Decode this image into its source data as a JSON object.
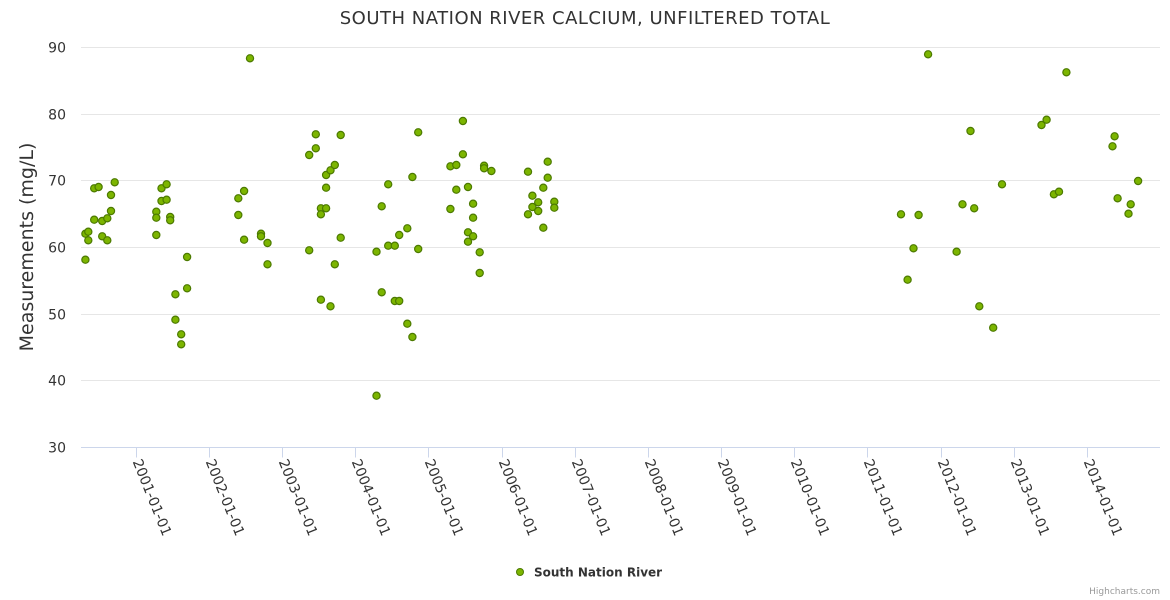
{
  "chart_data": {
    "type": "scatter",
    "title": "SOUTH NATION RIVER CALCIUM, UNFILTERED TOTAL",
    "xlabel": "",
    "ylabel": "Measurements (mg/L)",
    "ylim": [
      30,
      90
    ],
    "yticks": [
      30,
      40,
      50,
      60,
      70,
      80,
      90
    ],
    "xlim": [
      2000.25,
      2015.0
    ],
    "xticks": [
      {
        "value": 2001,
        "label": "2001-01-01"
      },
      {
        "value": 2002,
        "label": "2002-01-01"
      },
      {
        "value": 2003,
        "label": "2003-01-01"
      },
      {
        "value": 2004,
        "label": "2004-01-01"
      },
      {
        "value": 2005,
        "label": "2005-01-01"
      },
      {
        "value": 2006,
        "label": "2006-01-01"
      },
      {
        "value": 2007,
        "label": "2007-01-01"
      },
      {
        "value": 2008,
        "label": "2008-01-01"
      },
      {
        "value": 2009,
        "label": "2009-01-01"
      },
      {
        "value": 2010,
        "label": "2010-01-01"
      },
      {
        "value": 2011,
        "label": "2011-01-01"
      },
      {
        "value": 2012,
        "label": "2012-01-01"
      },
      {
        "value": 2013,
        "label": "2013-01-01"
      },
      {
        "value": 2014,
        "label": "2014-01-01"
      }
    ],
    "grid": true,
    "legend_position": "bottom-center",
    "credits": "Highcharts.com",
    "series": [
      {
        "name": "South Nation River",
        "color": "#7cb500",
        "border_color": "#4c7a00",
        "points": [
          [
            2000.31,
            62.0
          ],
          [
            2000.31,
            58.1
          ],
          [
            2000.35,
            62.3
          ],
          [
            2000.35,
            61.0
          ],
          [
            2000.43,
            64.1
          ],
          [
            2000.43,
            68.8
          ],
          [
            2000.49,
            69.0
          ],
          [
            2000.54,
            63.9
          ],
          [
            2000.54,
            61.6
          ],
          [
            2000.61,
            64.3
          ],
          [
            2000.61,
            61.0
          ],
          [
            2000.66,
            65.4
          ],
          [
            2000.66,
            67.8
          ],
          [
            2000.71,
            69.7
          ],
          [
            2001.28,
            65.3
          ],
          [
            2001.28,
            64.4
          ],
          [
            2001.28,
            61.8
          ],
          [
            2001.35,
            66.9
          ],
          [
            2001.35,
            68.8
          ],
          [
            2001.42,
            69.4
          ],
          [
            2001.42,
            67.1
          ],
          [
            2001.47,
            64.5
          ],
          [
            2001.47,
            64.0
          ],
          [
            2001.54,
            52.9
          ],
          [
            2001.54,
            49.1
          ],
          [
            2001.62,
            46.9
          ],
          [
            2001.62,
            45.4
          ],
          [
            2001.7,
            58.5
          ],
          [
            2001.7,
            53.8
          ],
          [
            2002.4,
            64.8
          ],
          [
            2002.4,
            67.3
          ],
          [
            2002.48,
            68.4
          ],
          [
            2002.48,
            61.1
          ],
          [
            2002.56,
            88.3
          ],
          [
            2002.71,
            62.0
          ],
          [
            2002.71,
            61.6
          ],
          [
            2002.8,
            57.4
          ],
          [
            2002.8,
            60.6
          ],
          [
            2003.37,
            59.5
          ],
          [
            2003.37,
            73.8
          ],
          [
            2003.46,
            76.9
          ],
          [
            2003.46,
            74.8
          ],
          [
            2003.53,
            65.8
          ],
          [
            2003.53,
            64.9
          ],
          [
            2003.53,
            52.1
          ],
          [
            2003.6,
            70.8
          ],
          [
            2003.6,
            68.9
          ],
          [
            2003.6,
            65.8
          ],
          [
            2003.66,
            71.5
          ],
          [
            2003.66,
            51.1
          ],
          [
            2003.72,
            72.3
          ],
          [
            2003.72,
            57.4
          ],
          [
            2003.8,
            76.8
          ],
          [
            2003.8,
            61.4
          ],
          [
            2004.29,
            59.3
          ],
          [
            2004.29,
            37.7
          ],
          [
            2004.36,
            66.1
          ],
          [
            2004.36,
            53.2
          ],
          [
            2004.45,
            69.4
          ],
          [
            2004.45,
            60.2
          ],
          [
            2004.54,
            60.2
          ],
          [
            2004.54,
            51.9
          ],
          [
            2004.6,
            61.8
          ],
          [
            2004.6,
            51.9
          ],
          [
            2004.71,
            62.8
          ],
          [
            2004.71,
            48.5
          ],
          [
            2004.78,
            70.5
          ],
          [
            2004.78,
            46.5
          ],
          [
            2004.86,
            77.2
          ],
          [
            2004.86,
            59.7
          ],
          [
            2005.3,
            65.7
          ],
          [
            2005.3,
            72.1
          ],
          [
            2005.38,
            72.3
          ],
          [
            2005.38,
            68.6
          ],
          [
            2005.47,
            78.9
          ],
          [
            2005.47,
            73.9
          ],
          [
            2005.54,
            69.0
          ],
          [
            2005.54,
            62.2
          ],
          [
            2005.54,
            60.8
          ],
          [
            2005.61,
            66.5
          ],
          [
            2005.61,
            64.4
          ],
          [
            2005.61,
            61.6
          ],
          [
            2005.7,
            59.2
          ],
          [
            2005.7,
            56.1
          ],
          [
            2005.76,
            72.2
          ],
          [
            2005.76,
            71.8
          ],
          [
            2005.86,
            71.4
          ],
          [
            2006.36,
            71.3
          ],
          [
            2006.36,
            64.9
          ],
          [
            2006.42,
            67.7
          ],
          [
            2006.42,
            66.0
          ],
          [
            2006.5,
            66.7
          ],
          [
            2006.5,
            65.4
          ],
          [
            2006.57,
            68.9
          ],
          [
            2006.57,
            62.9
          ],
          [
            2006.63,
            72.8
          ],
          [
            2006.63,
            70.4
          ],
          [
            2006.72,
            66.8
          ],
          [
            2006.72,
            65.9
          ],
          [
            2011.46,
            64.9
          ],
          [
            2011.55,
            55.1
          ],
          [
            2011.63,
            59.8
          ],
          [
            2011.7,
            64.8
          ],
          [
            2011.83,
            88.9
          ],
          [
            2012.22,
            59.3
          ],
          [
            2012.3,
            66.4
          ],
          [
            2012.41,
            77.4
          ],
          [
            2012.46,
            65.8
          ],
          [
            2012.53,
            51.1
          ],
          [
            2012.72,
            47.9
          ],
          [
            2012.84,
            69.4
          ],
          [
            2013.38,
            78.3
          ],
          [
            2013.45,
            79.1
          ],
          [
            2013.55,
            67.9
          ],
          [
            2013.62,
            68.3
          ],
          [
            2013.72,
            86.2
          ],
          [
            2014.35,
            75.1
          ],
          [
            2014.38,
            76.6
          ],
          [
            2014.42,
            67.3
          ],
          [
            2014.57,
            65.0
          ],
          [
            2014.6,
            66.4
          ],
          [
            2014.7,
            69.9
          ]
        ]
      }
    ]
  }
}
